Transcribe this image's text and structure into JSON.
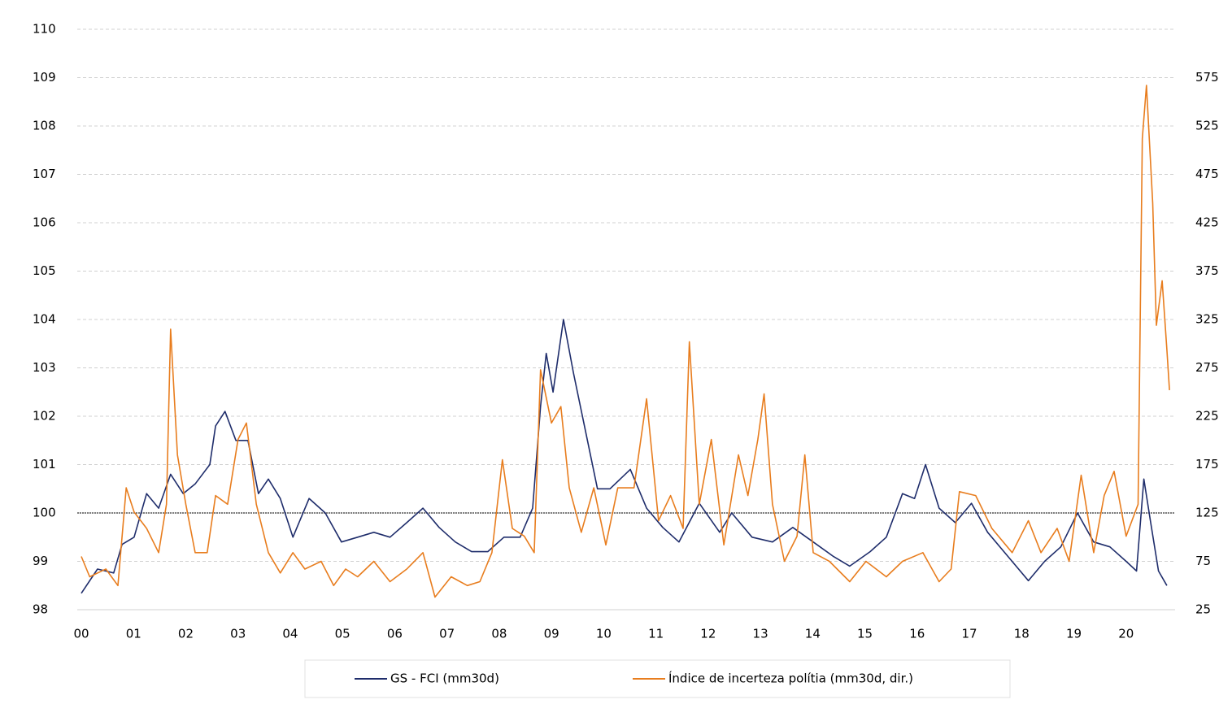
{
  "chart_data": {
    "type": "line",
    "xlim": [
      0,
      21
    ],
    "xticks": [
      {
        "value": 0,
        "label": "00"
      },
      {
        "value": 1,
        "label": "01"
      },
      {
        "value": 2,
        "label": "02"
      },
      {
        "value": 3,
        "label": "03"
      },
      {
        "value": 4,
        "label": "04"
      },
      {
        "value": 5,
        "label": "05"
      },
      {
        "value": 6,
        "label": "06"
      },
      {
        "value": 7,
        "label": "07"
      },
      {
        "value": 8,
        "label": "08"
      },
      {
        "value": 9,
        "label": "09"
      },
      10,
      11,
      12,
      13,
      14,
      15,
      16,
      17,
      18,
      19,
      20
    ],
    "ylim": [
      98,
      110
    ],
    "yticks": [
      98,
      99,
      100,
      101,
      102,
      103,
      104,
      105,
      106,
      107,
      108,
      109,
      110
    ],
    "y2lim": [
      25,
      625
    ],
    "y2ticks": [
      25,
      75,
      125,
      175,
      225,
      275,
      325,
      375,
      425,
      475,
      525,
      575
    ],
    "grid": true,
    "hline": 100,
    "legend": "bottom",
    "series": [
      {
        "name": "GS - FCI (mm30d)",
        "color": "#1f2d6b",
        "x": [
          0,
          0.31,
          0.62,
          0.78,
          1.01,
          1.25,
          1.48,
          1.71,
          1.95,
          2.18,
          2.46,
          2.57,
          2.75,
          2.96,
          3.19,
          3.39,
          3.58,
          3.81,
          4.05,
          4.36,
          4.67,
          4.98,
          5.29,
          5.6,
          5.91,
          6.23,
          6.54,
          6.85,
          7.16,
          7.47,
          7.78,
          8.09,
          8.4,
          8.64,
          8.79,
          8.9,
          9.03,
          9.23,
          9.42,
          9.65,
          9.88,
          10.12,
          10.51,
          10.82,
          11.13,
          11.44,
          11.83,
          12.22,
          12.45,
          12.84,
          13.23,
          13.62,
          14.01,
          14.4,
          14.71,
          15.1,
          15.41,
          15.72,
          15.95,
          16.16,
          16.42,
          16.73,
          17.04,
          17.35,
          17.74,
          18.13,
          18.44,
          18.75,
          19.07,
          19.38,
          19.69,
          20.0,
          20.2,
          20.34,
          20.47,
          20.62,
          20.78
        ],
        "values": [
          98.34,
          98.84,
          98.76,
          99.35,
          99.5,
          100.4,
          100.1,
          100.8,
          100.4,
          100.6,
          101.0,
          101.8,
          102.1,
          101.5,
          101.5,
          100.4,
          100.7,
          100.3,
          99.5,
          100.3,
          100.0,
          99.4,
          99.5,
          99.6,
          99.5,
          99.8,
          100.1,
          99.7,
          99.4,
          99.2,
          99.2,
          99.5,
          99.5,
          100.1,
          102.2,
          103.3,
          102.5,
          104.0,
          102.9,
          101.7,
          100.5,
          100.5,
          100.9,
          100.1,
          99.7,
          99.4,
          100.2,
          99.6,
          100.0,
          99.5,
          99.4,
          99.7,
          99.4,
          99.1,
          98.9,
          99.2,
          99.5,
          100.4,
          100.3,
          101.0,
          100.1,
          99.8,
          100.2,
          99.6,
          99.1,
          98.6,
          99.0,
          99.3,
          100.0,
          99.4,
          99.3,
          99.0,
          98.8,
          100.7,
          99.8,
          98.8,
          98.5
        ]
      },
      {
        "name": "Índice de incerteza polítia (mm30d, dir.)",
        "color": "#e87d1e",
        "axis": "y2",
        "x": [
          0,
          0.16,
          0.47,
          0.7,
          0.86,
          1.01,
          1.25,
          1.48,
          1.63,
          1.71,
          1.84,
          2.0,
          2.18,
          2.41,
          2.57,
          2.8,
          3.0,
          3.16,
          3.35,
          3.58,
          3.81,
          4.05,
          4.28,
          4.59,
          4.83,
          5.06,
          5.29,
          5.6,
          5.91,
          6.23,
          6.54,
          6.77,
          7.08,
          7.39,
          7.63,
          7.86,
          8.06,
          8.25,
          8.48,
          8.67,
          8.79,
          9.0,
          9.18,
          9.34,
          9.57,
          9.81,
          10.04,
          10.27,
          10.58,
          10.82,
          11.05,
          11.28,
          11.52,
          11.64,
          11.83,
          12.06,
          12.3,
          12.58,
          12.76,
          12.95,
          13.07,
          13.23,
          13.46,
          13.7,
          13.85,
          14.01,
          14.32,
          14.71,
          15.02,
          15.41,
          15.72,
          16.11,
          16.42,
          16.65,
          16.81,
          17.12,
          17.43,
          17.82,
          18.13,
          18.37,
          18.68,
          18.91,
          19.14,
          19.38,
          19.58,
          19.77,
          20.0,
          20.23,
          20.31,
          20.39,
          20.51,
          20.58,
          20.69,
          20.78,
          20.83
        ],
        "values": [
          80,
          59,
          67,
          50,
          151,
          126,
          109,
          84,
          134,
          315,
          185,
          134,
          84,
          84,
          143,
          134,
          201,
          218,
          134,
          84,
          63,
          84,
          67,
          75,
          50,
          67,
          59,
          75,
          54,
          67,
          84,
          38,
          59,
          50,
          54,
          84,
          180,
          109,
          101,
          84,
          273,
          218,
          235,
          151,
          105,
          151,
          92,
          151,
          151,
          243,
          117,
          143,
          109,
          302,
          134,
          201,
          92,
          185,
          143,
          201,
          248,
          134,
          75,
          101,
          185,
          84,
          75,
          54,
          75,
          59,
          75,
          84,
          54,
          67,
          147,
          143,
          109,
          84,
          117,
          84,
          109,
          75,
          164,
          84,
          143,
          168,
          101,
          134,
          512,
          567,
          445,
          319,
          365,
          294,
          252
        ]
      }
    ]
  }
}
